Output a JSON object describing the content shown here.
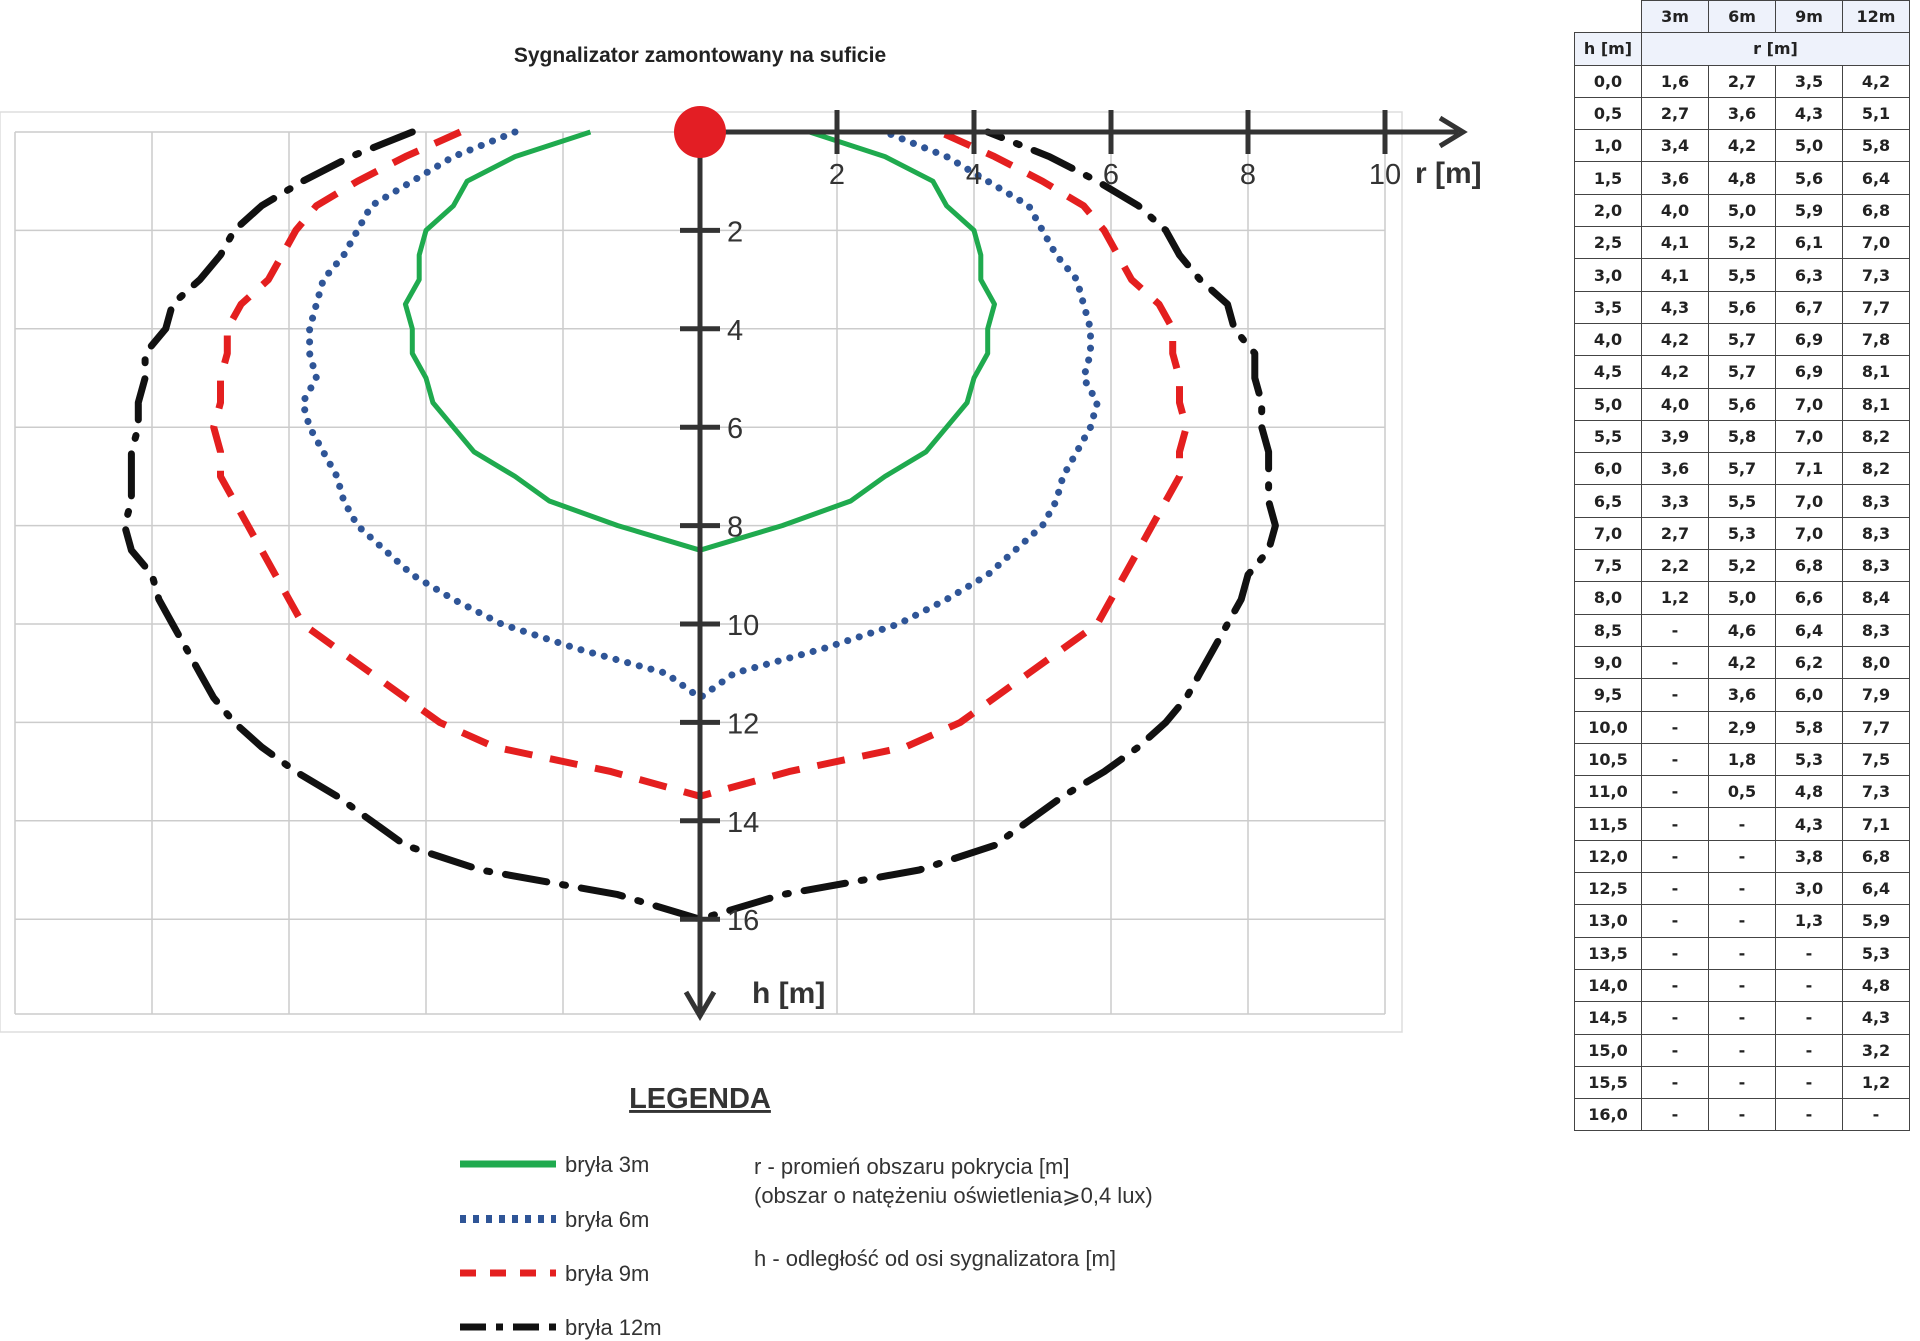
{
  "chart_data": {
    "type": "line",
    "title": "Sygnalizator zamontowany na suficie",
    "xlabel": "r [m]",
    "ylabel": "h [m]",
    "xlim": [
      -10,
      10
    ],
    "ylim": [
      0,
      16
    ],
    "x_ticks": [
      "2",
      "4",
      "6",
      "8",
      "10"
    ],
    "y_ticks": [
      "2",
      "4",
      "6",
      "8",
      "10",
      "12",
      "14",
      "16"
    ],
    "grid": true,
    "h": [
      0.0,
      0.5,
      1.0,
      1.5,
      2.0,
      2.5,
      3.0,
      3.5,
      4.0,
      4.5,
      5.0,
      5.5,
      6.0,
      6.5,
      7.0,
      7.5,
      8.0,
      8.5,
      9.0,
      9.5,
      10.0,
      10.5,
      11.0,
      11.5,
      12.0,
      12.5,
      13.0,
      13.5,
      14.0,
      14.5,
      15.0,
      15.5,
      16.0
    ],
    "series": [
      {
        "name": "bryła 3m",
        "color": "#1faa4e",
        "style": "solid",
        "values": [
          1.6,
          2.7,
          3.4,
          3.6,
          4.0,
          4.1,
          4.1,
          4.3,
          4.2,
          4.2,
          4.0,
          3.9,
          3.6,
          3.3,
          2.7,
          2.2,
          1.2,
          null,
          null,
          null,
          null,
          null,
          null,
          null,
          null,
          null,
          null,
          null,
          null,
          null,
          null,
          null,
          null
        ]
      },
      {
        "name": "bryła 6m",
        "color": "#2f5597",
        "style": "dotted",
        "values": [
          2.7,
          3.6,
          4.2,
          4.8,
          5.0,
          5.2,
          5.5,
          5.6,
          5.7,
          5.7,
          5.6,
          5.8,
          5.7,
          5.5,
          5.3,
          5.2,
          5.0,
          4.6,
          4.2,
          3.6,
          2.9,
          1.8,
          0.5,
          null,
          null,
          null,
          null,
          null,
          null,
          null,
          null,
          null,
          null
        ]
      },
      {
        "name": "bryła 9m",
        "color": "#e41f1f",
        "style": "dashed",
        "values": [
          3.5,
          4.3,
          5.0,
          5.6,
          5.9,
          6.1,
          6.3,
          6.7,
          6.9,
          6.9,
          7.0,
          7.0,
          7.1,
          7.0,
          7.0,
          6.8,
          6.6,
          6.4,
          6.2,
          6.0,
          5.8,
          5.3,
          4.8,
          4.3,
          3.8,
          3.0,
          1.3,
          null,
          null,
          null,
          null,
          null,
          null
        ]
      },
      {
        "name": "bryła 12m",
        "color": "#111111",
        "style": "dashdot",
        "values": [
          4.2,
          5.1,
          5.8,
          6.4,
          6.8,
          7.0,
          7.3,
          7.7,
          7.8,
          8.1,
          8.1,
          8.2,
          8.2,
          8.3,
          8.3,
          8.3,
          8.4,
          8.3,
          8.0,
          7.9,
          7.7,
          7.5,
          7.3,
          7.1,
          6.8,
          6.4,
          5.9,
          5.3,
          4.8,
          4.3,
          3.2,
          1.2,
          null
        ]
      }
    ]
  },
  "legend": {
    "title": "LEGENDA",
    "items": [
      "bryła 3m",
      "bryła 6m",
      "bryła 9m",
      "bryła 12m"
    ],
    "note_r": "r - promień obszaru pokrycia [m]",
    "note_r2": "(obszar o natężeniu oświetlenia⩾0,4 lux)",
    "note_h": "h - odległość od osi sygnalizatora [m]"
  },
  "table": {
    "col_headers": [
      "3m",
      "6m",
      "9m",
      "12m"
    ],
    "h_header": "h [m]",
    "r_header": "r [m]",
    "rows": [
      [
        "0,0",
        "1,6",
        "2,7",
        "3,5",
        "4,2"
      ],
      [
        "0,5",
        "2,7",
        "3,6",
        "4,3",
        "5,1"
      ],
      [
        "1,0",
        "3,4",
        "4,2",
        "5,0",
        "5,8"
      ],
      [
        "1,5",
        "3,6",
        "4,8",
        "5,6",
        "6,4"
      ],
      [
        "2,0",
        "4,0",
        "5,0",
        "5,9",
        "6,8"
      ],
      [
        "2,5",
        "4,1",
        "5,2",
        "6,1",
        "7,0"
      ],
      [
        "3,0",
        "4,1",
        "5,5",
        "6,3",
        "7,3"
      ],
      [
        "3,5",
        "4,3",
        "5,6",
        "6,7",
        "7,7"
      ],
      [
        "4,0",
        "4,2",
        "5,7",
        "6,9",
        "7,8"
      ],
      [
        "4,5",
        "4,2",
        "5,7",
        "6,9",
        "8,1"
      ],
      [
        "5,0",
        "4,0",
        "5,6",
        "7,0",
        "8,1"
      ],
      [
        "5,5",
        "3,9",
        "5,8",
        "7,0",
        "8,2"
      ],
      [
        "6,0",
        "3,6",
        "5,7",
        "7,1",
        "8,2"
      ],
      [
        "6,5",
        "3,3",
        "5,5",
        "7,0",
        "8,3"
      ],
      [
        "7,0",
        "2,7",
        "5,3",
        "7,0",
        "8,3"
      ],
      [
        "7,5",
        "2,2",
        "5,2",
        "6,8",
        "8,3"
      ],
      [
        "8,0",
        "1,2",
        "5,0",
        "6,6",
        "8,4"
      ],
      [
        "8,5",
        "-",
        "4,6",
        "6,4",
        "8,3"
      ],
      [
        "9,0",
        "-",
        "4,2",
        "6,2",
        "8,0"
      ],
      [
        "9,5",
        "-",
        "3,6",
        "6,0",
        "7,9"
      ],
      [
        "10,0",
        "-",
        "2,9",
        "5,8",
        "7,7"
      ],
      [
        "10,5",
        "-",
        "1,8",
        "5,3",
        "7,5"
      ],
      [
        "11,0",
        "-",
        "0,5",
        "4,8",
        "7,3"
      ],
      [
        "11,5",
        "-",
        "-",
        "4,3",
        "7,1"
      ],
      [
        "12,0",
        "-",
        "-",
        "3,8",
        "6,8"
      ],
      [
        "12,5",
        "-",
        "-",
        "3,0",
        "6,4"
      ],
      [
        "13,0",
        "-",
        "-",
        "1,3",
        "5,9"
      ],
      [
        "13,5",
        "-",
        "-",
        "-",
        "5,3"
      ],
      [
        "14,0",
        "-",
        "-",
        "-",
        "4,8"
      ],
      [
        "14,5",
        "-",
        "-",
        "-",
        "4,3"
      ],
      [
        "15,0",
        "-",
        "-",
        "-",
        "3,2"
      ],
      [
        "15,5",
        "-",
        "-",
        "-",
        "1,2"
      ],
      [
        "16,0",
        "-",
        "-",
        "-",
        "-"
      ]
    ]
  }
}
